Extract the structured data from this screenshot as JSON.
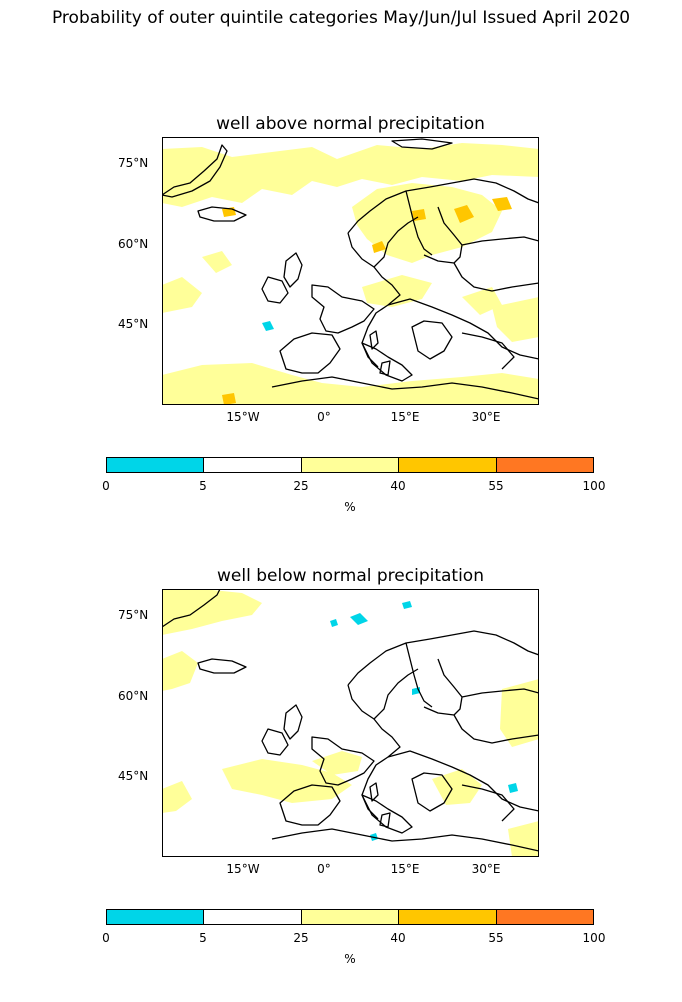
{
  "title": "Probability of outer quintile categories May/Jun/Jul Issued April 2020",
  "panels": [
    {
      "title": "well above normal precipitation"
    },
    {
      "title": "well below normal precipitation"
    }
  ],
  "lat_labels": [
    "75°N",
    "60°N",
    "45°N"
  ],
  "lon_labels": [
    "15°W",
    "0°",
    "15°E",
    "30°E"
  ],
  "colorbar": {
    "ticks": [
      "0",
      "5",
      "25",
      "40",
      "55",
      "100"
    ],
    "colors": [
      "#00d5e8",
      "#ffffff",
      "#ffff99",
      "#ffc600",
      "#ff7722"
    ],
    "label": "%"
  }
}
